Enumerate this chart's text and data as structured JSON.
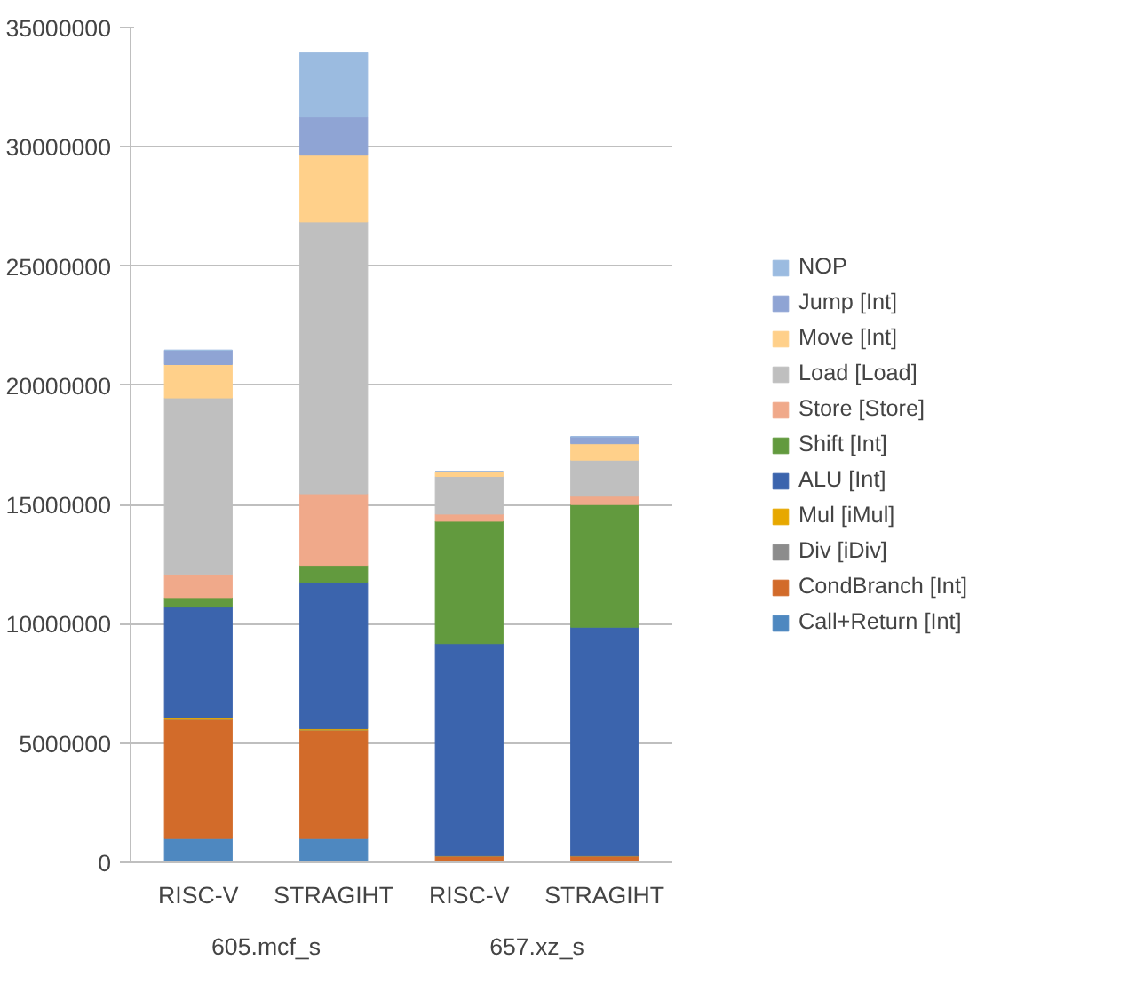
{
  "chart_data": {
    "type": "bar",
    "stacked": true,
    "categories": [
      "RISC-V",
      "STRAGIHT",
      "RISC-V",
      "STRAGIHT"
    ],
    "annotations": [
      "605.mcf_s",
      "657.xz_s"
    ],
    "ylim": [
      0,
      35000000
    ],
    "yticks": [
      0,
      5000000,
      10000000,
      15000000,
      20000000,
      25000000,
      30000000,
      35000000
    ],
    "grid": "y",
    "legend": "right",
    "series": [
      {
        "name": "Call+Return [Int]",
        "color": "#4e88c0",
        "values": [
          1000000,
          1000000,
          0,
          0
        ]
      },
      {
        "name": "CondBranch [Int]",
        "color": "#d26b2a",
        "values": [
          5000000,
          4550000,
          270000,
          270000
        ]
      },
      {
        "name": "Div [iDiv]",
        "color": "#8c8c8c",
        "values": [
          0,
          0,
          0,
          0
        ]
      },
      {
        "name": "Mul [iMul]",
        "color": "#e7a800",
        "values": [
          50000,
          50000,
          0,
          0
        ]
      },
      {
        "name": "ALU [Int]",
        "color": "#3b64ad",
        "values": [
          4650000,
          6150000,
          8900000,
          9590000
        ]
      },
      {
        "name": "Shift [Int]",
        "color": "#629a3e",
        "values": [
          400000,
          700000,
          5130000,
          5140000
        ]
      },
      {
        "name": "Store [Store]",
        "color": "#f0a98a",
        "values": [
          970000,
          3000000,
          300000,
          350000
        ]
      },
      {
        "name": "Load [Load]",
        "color": "#bfbfbf",
        "values": [
          7400000,
          11400000,
          1580000,
          1510000
        ]
      },
      {
        "name": "Move [Int]",
        "color": "#ffd08a",
        "values": [
          1400000,
          2800000,
          200000,
          690000
        ]
      },
      {
        "name": "Jump [Int]",
        "color": "#8fa4d4",
        "values": [
          600000,
          1600000,
          0,
          290000
        ]
      },
      {
        "name": "NOP",
        "color": "#9bbbe0",
        "values": [
          0,
          2700000,
          0,
          0
        ]
      }
    ]
  }
}
